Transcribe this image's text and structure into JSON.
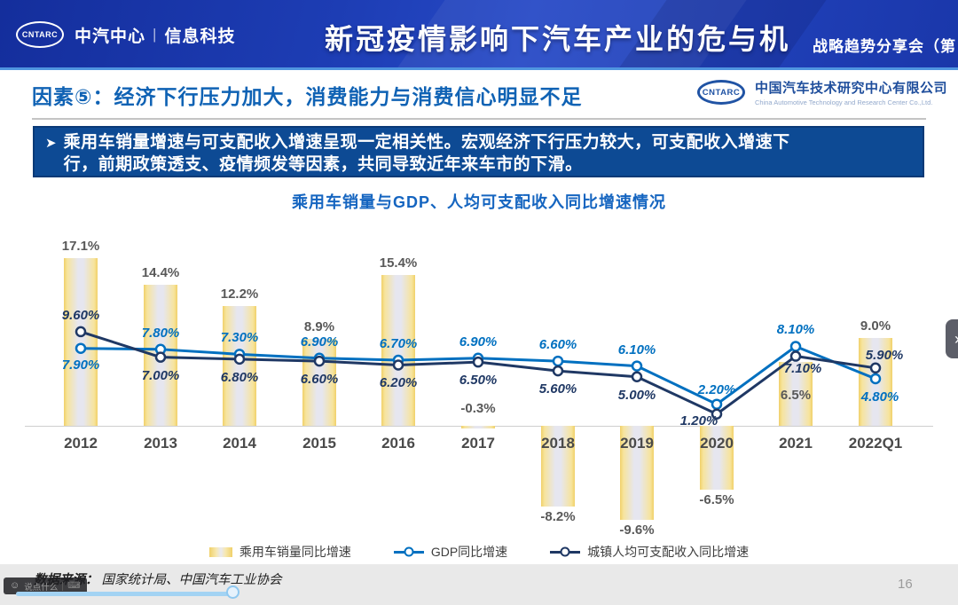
{
  "header": {
    "logo_text": "CNTARC",
    "brand": "中汽中心",
    "brand_sep": "|",
    "dept": "信息科技",
    "title": "新冠疫情影响下汽车产业的危与机",
    "right_text": "战略趋势分享会（第"
  },
  "subheader": {
    "heading": "因素⑤：经济下行压力加大，消费能力与消费信心明显不足",
    "org_logo_text": "CNTARC",
    "org_name_cn": "中国汽车技术研究中心有限公司",
    "org_name_en": "China Automotive Technology and Research Center Co.,Ltd."
  },
  "banner": {
    "bullet": "➤",
    "text": "乘用车销量增速与可支配收入增速呈现一定相关性。宏观经济下行压力较大，可支配收入增速下行，前期政策透支、疫情频发等因素，共同导致近年来车市的下滑。"
  },
  "chart_data": {
    "type": "bar+line combo",
    "title": "乘用车销量与GDP、人均可支配收入同比增速情况",
    "categories": [
      "2012",
      "2013",
      "2014",
      "2015",
      "2016",
      "2017",
      "2018",
      "2019",
      "2020",
      "2021",
      "2022Q1"
    ],
    "series": [
      {
        "name": "乘用车销量同比增速",
        "type": "bar",
        "color": "#f5d878",
        "values": [
          17.1,
          14.4,
          12.2,
          8.9,
          15.4,
          -0.3,
          -8.2,
          -9.6,
          -6.5,
          6.5,
          9.0
        ],
        "labels": [
          "17.1%",
          "14.4%",
          "12.2%",
          "8.9%",
          "15.4%",
          "-0.3%",
          "-8.2%",
          "-9.6%",
          "-6.5%",
          "6.5%",
          "9.0%"
        ]
      },
      {
        "name": "GDP同比增速",
        "type": "line",
        "color": "#0070c0",
        "values": [
          7.9,
          7.8,
          7.3,
          6.9,
          6.7,
          6.9,
          6.6,
          6.1,
          2.2,
          8.1,
          4.8
        ],
        "labels": [
          "7.90%",
          "7.80%",
          "7.30%",
          "6.90%",
          "6.70%",
          "6.90%",
          "6.60%",
          "6.10%",
          "2.20%",
          "8.10%",
          "4.80%"
        ]
      },
      {
        "name": "城镇人均可支配收入同比增速",
        "type": "line",
        "color": "#1f3864",
        "values": [
          9.6,
          7.0,
          6.8,
          6.6,
          6.2,
          6.5,
          5.6,
          5.0,
          1.2,
          7.1,
          5.9
        ],
        "labels": [
          "9.60%",
          "7.00%",
          "6.80%",
          "6.60%",
          "6.20%",
          "6.50%",
          "5.60%",
          "5.00%",
          "1.20%",
          "7.10%",
          "5.90%"
        ]
      }
    ],
    "ylim": [
      -12,
      20
    ],
    "grid": false,
    "legend_position": "bottom"
  },
  "footer": {
    "source_prefix": "数据来源：",
    "source_text": "国家统计局、中国汽车工业协会",
    "page_number": "16"
  },
  "player": {
    "comment_placeholder": "说点什么",
    "emoji_icon": "☺",
    "keyboard_icon": "⌨",
    "next_arrow": "›"
  },
  "theme": {
    "header_blue": "#1d3db4",
    "accent_blue": "#0f62b4",
    "banner_blue": "#0d4a94",
    "bar_yellow": "#f5d878",
    "gdp_blue": "#0070c0",
    "income_navy": "#1f3864"
  }
}
